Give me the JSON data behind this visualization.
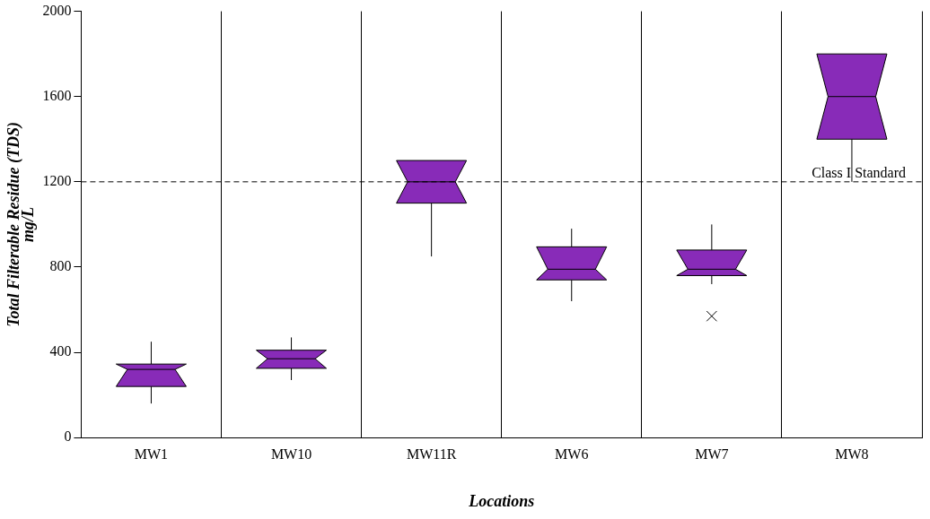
{
  "chart_data": {
    "type": "box",
    "xlabel": "Locations",
    "ylabel": "Total Filterable Residue (TDS)\nmg/L",
    "categories": [
      "MW1",
      "MW10",
      "MW11R",
      "MW6",
      "MW7",
      "MW8"
    ],
    "color": "#882bb8",
    "boxes": [
      {
        "low": 160,
        "q1": 240,
        "median": 320,
        "q3": 345,
        "high": 450
      },
      {
        "low": 270,
        "q1": 325,
        "median": 370,
        "q3": 410,
        "high": 470
      },
      {
        "low": 850,
        "q1": 1100,
        "median": 1200,
        "q3": 1300,
        "high": 1300
      },
      {
        "low": 640,
        "q1": 740,
        "median": 790,
        "q3": 895,
        "high": 980
      },
      {
        "low": 720,
        "q1": 760,
        "median": 790,
        "q3": 880,
        "high": 1000,
        "outliers": [
          570
        ]
      },
      {
        "low": 1200,
        "q1": 1400,
        "median": 1600,
        "q3": 1800,
        "high": 1800
      }
    ],
    "ylim": [
      0,
      2000
    ],
    "yticks": [
      0,
      400,
      800,
      1200,
      1600,
      2000
    ],
    "grid": "x",
    "ref_lines": [
      {
        "axis": "y",
        "value": 1200,
        "label": "Class I Standard",
        "line_style": "dashed"
      }
    ]
  }
}
